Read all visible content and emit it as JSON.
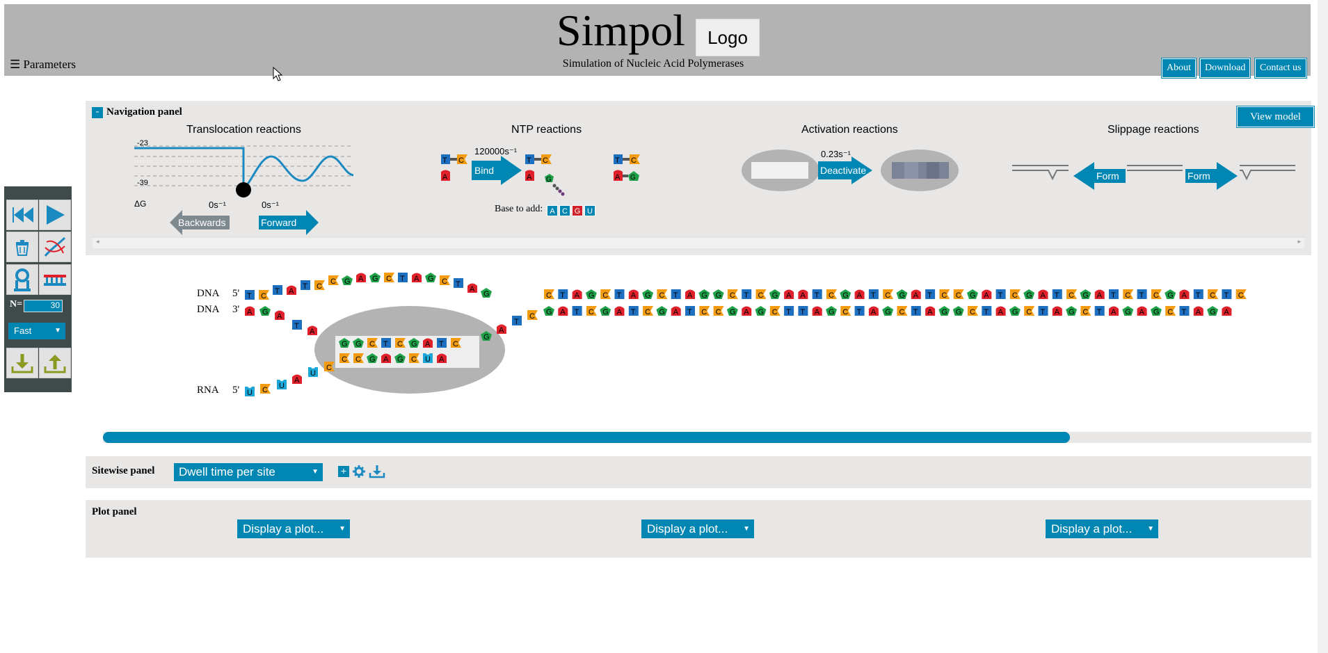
{
  "header": {
    "title": "Simpol",
    "logo_text": "Logo",
    "subtitle": "Simulation of Nucleic Acid Polymerases",
    "params_label": "☰ Parameters",
    "buttons": [
      {
        "label": "About"
      },
      {
        "label": "Download"
      },
      {
        "label": "Contact us"
      }
    ]
  },
  "nav_panel": {
    "collapse_label": "-",
    "title": "Navigation panel",
    "view_model_label": "View model",
    "translocation": {
      "title": "Translocation reactions",
      "y_top": "-23",
      "y_bottom": "-39",
      "dg_label": "ΔG",
      "rate_backward": "0s⁻¹",
      "rate_forward": "0s⁻¹",
      "backwards_label": "Backwards",
      "forward_label": "Forward"
    },
    "ntp": {
      "title": "NTP reactions",
      "rate": "120000s⁻¹",
      "bind_label": "Bind",
      "base_to_add_label": "Base to add:",
      "bases": [
        "A",
        "C",
        "G",
        "U"
      ]
    },
    "activation": {
      "title": "Activation reactions",
      "rate": "0.23s⁻¹",
      "deactivate_label": "Deactivate"
    },
    "slippage": {
      "title": "Slippage reactions",
      "form_left_label": "Form",
      "form_right_label": "Form"
    }
  },
  "toolbar": {
    "n_label": "N=",
    "n_value": "30",
    "speed": "Fast"
  },
  "sequence": {
    "template_label": "DNA",
    "template_end": "5'",
    "complement_label": "DNA",
    "complement_end": "3'",
    "rna_label": "RNA",
    "rna_end": "5'",
    "top_left": [
      "T",
      "C",
      "T",
      "A",
      "T",
      "C",
      "C",
      "G",
      "A",
      "G",
      "C",
      "T",
      "A",
      "G",
      "C",
      "T",
      "A",
      "G"
    ],
    "top_right": [
      "C",
      "T",
      "A",
      "G",
      "C",
      "T",
      "A",
      "G",
      "C",
      "T",
      "A",
      "G",
      "G",
      "C",
      "T",
      "C",
      "G",
      "A",
      "A",
      "T",
      "C",
      "G",
      "A",
      "T",
      "C",
      "G",
      "A",
      "T",
      "C",
      "C",
      "G",
      "A",
      "T",
      "C",
      "G",
      "A",
      "T",
      "C",
      "G",
      "A",
      "T",
      "C",
      "T",
      "C",
      "G",
      "A",
      "T",
      "C",
      "T",
      "C"
    ],
    "bottom_left": [
      "A",
      "G",
      "A",
      "T",
      "A"
    ],
    "bottom_right": [
      "G",
      "A",
      "T",
      "C",
      "G",
      "A",
      "T",
      "C",
      "G",
      "A",
      "T",
      "C",
      "C",
      "G",
      "A",
      "G",
      "C",
      "T",
      "T",
      "A",
      "G",
      "C",
      "T",
      "A",
      "G",
      "C",
      "T",
      "A",
      "G",
      "G",
      "C",
      "T",
      "A",
      "G",
      "C",
      "T",
      "A",
      "G",
      "C",
      "T",
      "A",
      "G",
      "A",
      "G",
      "C",
      "T",
      "A",
      "G",
      "A"
    ],
    "bubble_template": [
      "G",
      "G",
      "C",
      "T",
      "C",
      "G",
      "A",
      "T",
      "C"
    ],
    "bubble_rna": [
      "C",
      "C",
      "G",
      "A",
      "G",
      "C",
      "U",
      "A"
    ],
    "rna_exit": [
      "U",
      "C",
      "U",
      "A",
      "U",
      "C"
    ],
    "bubble_entry": [
      "G",
      "A",
      "T",
      "C"
    ]
  },
  "progress": {
    "fraction": 0.8
  },
  "sitewise": {
    "title": "Sitewise panel",
    "selected": "Dwell time per site",
    "add_label": "+"
  },
  "plot_panel": {
    "title": "Plot panel",
    "plots": [
      {
        "selected": "Display a plot..."
      },
      {
        "selected": "Display a plot..."
      },
      {
        "selected": "Display a plot..."
      }
    ]
  },
  "colors": {
    "A": "#e0202a",
    "C": "#f39c12",
    "G": "#1fa14a",
    "T": "#1d6fbf",
    "U": "#1ba8d8",
    "accent": "#0086b3",
    "header_bg": "#b3b3b3",
    "panel_bg": "#e9e7e5"
  },
  "icons": [
    "rewind-icon",
    "play-icon",
    "trash-icon",
    "dna-icon",
    "polymerase-icon",
    "sequence-icon",
    "download-icon",
    "upload-icon",
    "gear-icon",
    "plus-icon"
  ]
}
